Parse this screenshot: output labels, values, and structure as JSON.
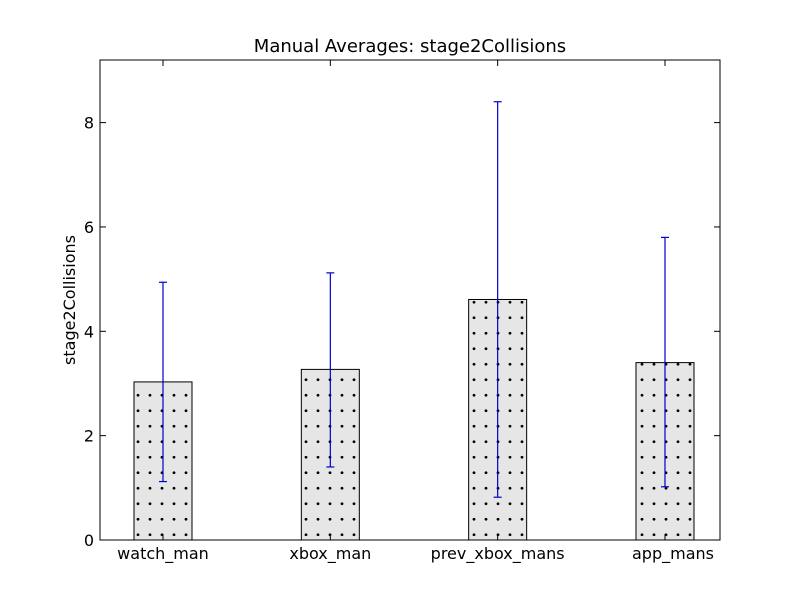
{
  "chart_data": {
    "type": "bar",
    "title": "Manual Averages: stage2Collisions",
    "xlabel": "",
    "ylabel": "stage2Collisions",
    "categories": [
      "watch_man",
      "xbox_man",
      "prev_xbox_mans",
      "app_mans"
    ],
    "values": [
      3.03,
      3.27,
      4.61,
      3.4
    ],
    "error_low": [
      1.12,
      1.4,
      0.82,
      1.02
    ],
    "error_high": [
      4.94,
      5.12,
      8.4,
      5.8
    ],
    "ylim": [
      0,
      9.2
    ],
    "yticks": [
      0,
      2,
      4,
      6,
      8
    ],
    "ytick_labels": [
      "0",
      "2",
      "4",
      "6",
      "8"
    ],
    "grid": false,
    "legend": "none",
    "bar_fill": "#e6e6e6",
    "bar_hatch": "dots",
    "hatch_color": "#000000",
    "error_color": "#0000cc"
  }
}
